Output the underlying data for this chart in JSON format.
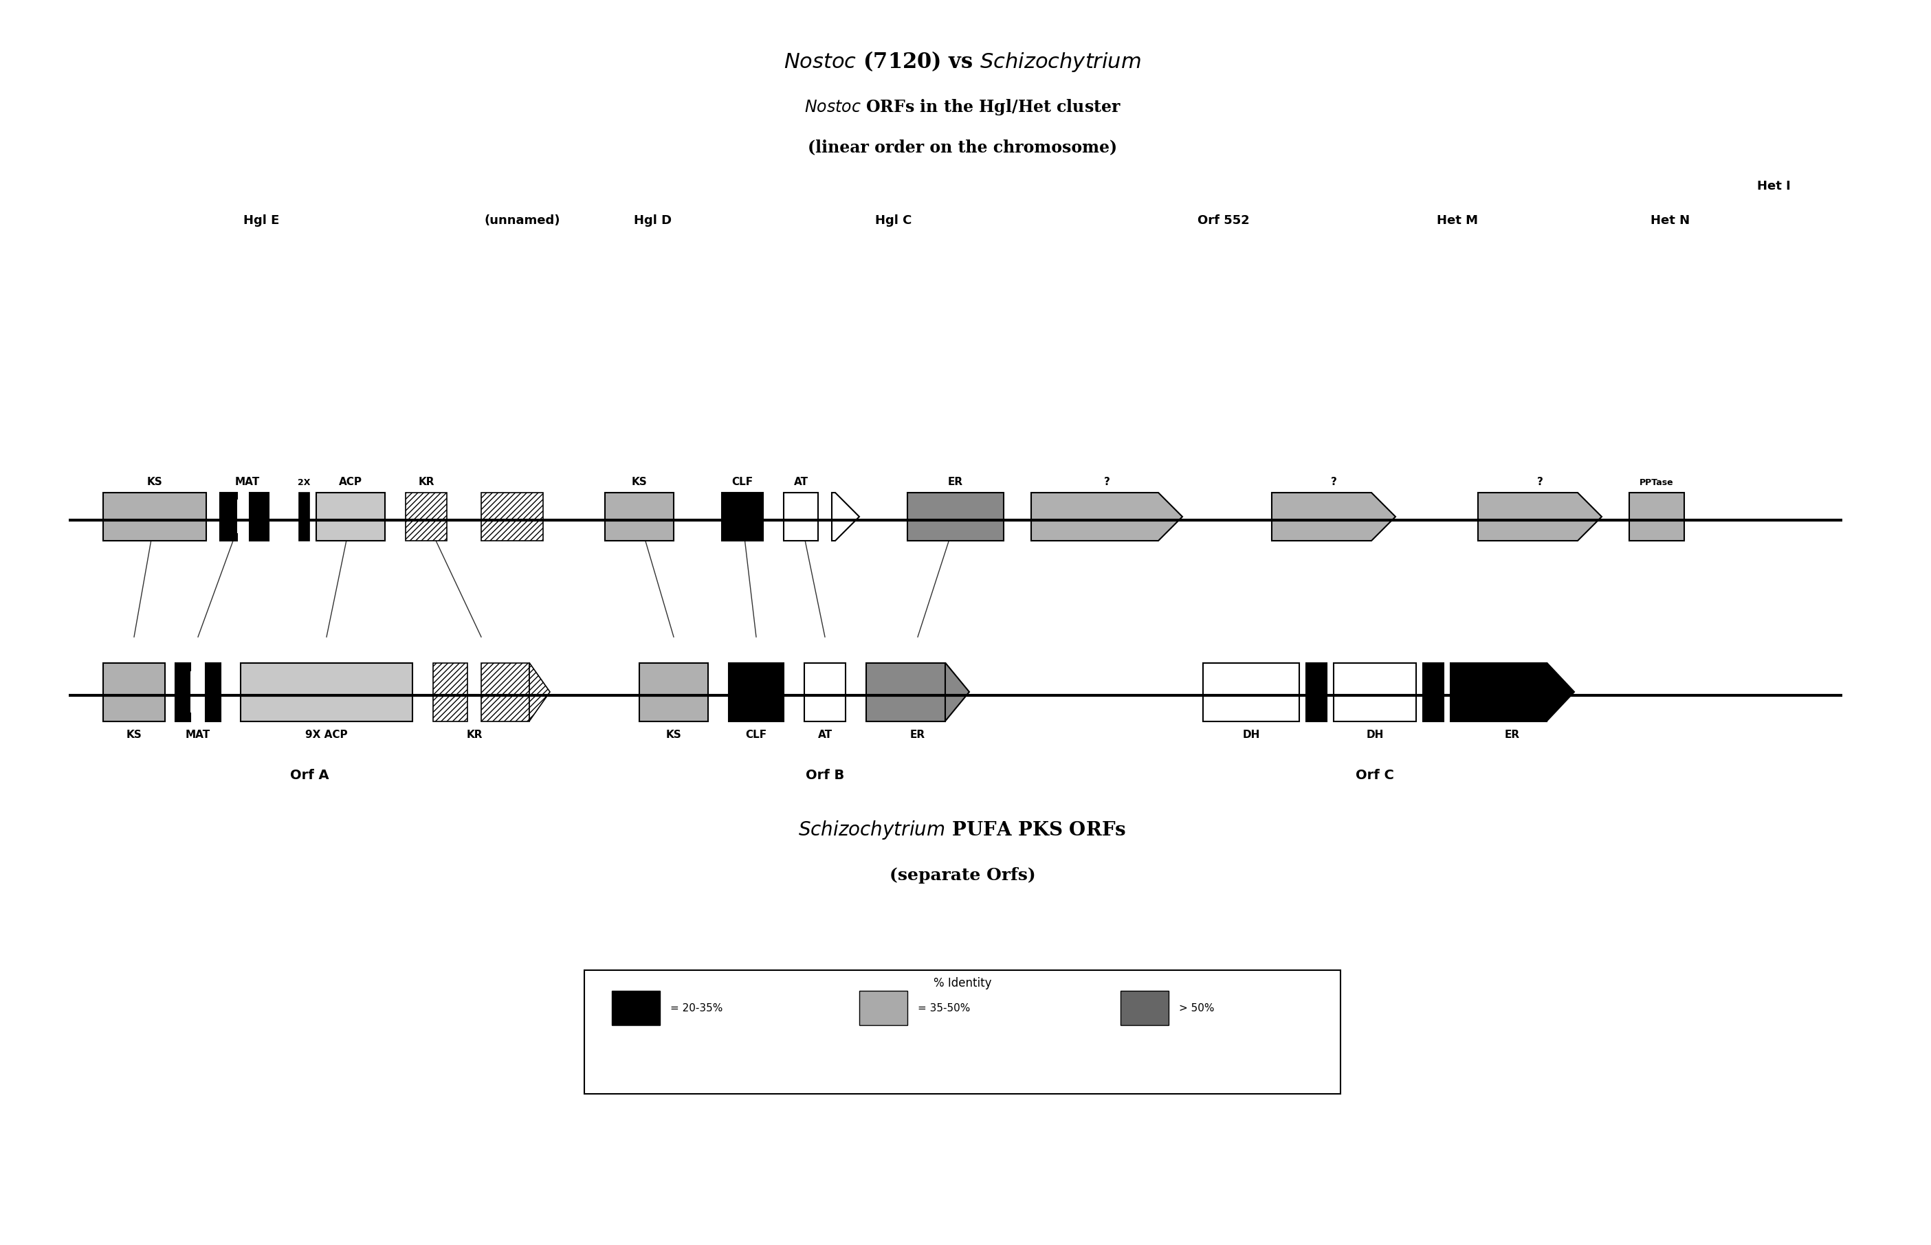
{
  "title1": "Nostoc (7120) vs Schizochytrium",
  "title2": "Nostoc ORFs in the Hgl/Het cluster",
  "title3": "(linear order on the chromosome)",
  "subtitle_schizo": "Schizochytrium PUFA PKS ORFs",
  "subtitle_schizo2": "(separate Orfs)",
  "legend_title": "% Identity",
  "legend_items": [
    {
      "label": "= 20-35%",
      "color": "#000000"
    },
    {
      "label": "= 35-50%",
      "color": "#aaaaaa"
    },
    {
      "label": "> 50%",
      "color": "#666666"
    }
  ],
  "bg_color": "#ffffff",
  "line_color": "#000000"
}
